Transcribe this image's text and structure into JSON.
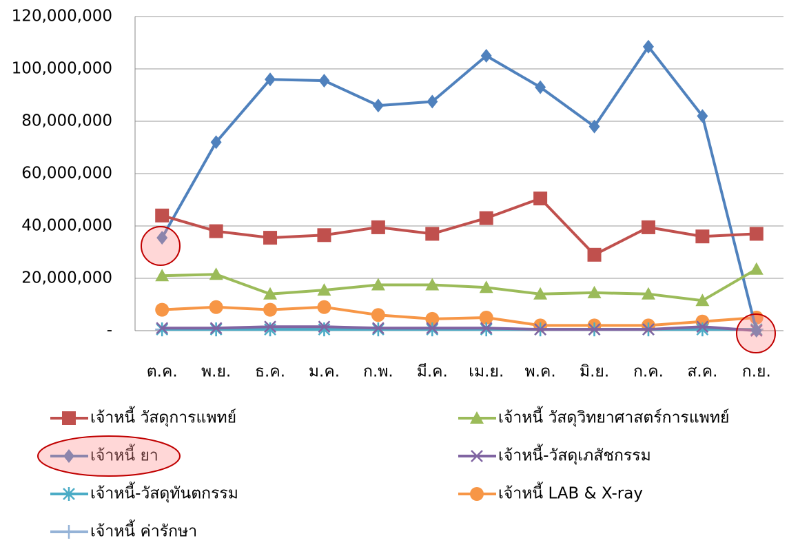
{
  "chart_data": {
    "type": "line",
    "categories": [
      "ต.ค.",
      "พ.ย.",
      "ธ.ค.",
      "ม.ค.",
      "ก.พ.",
      "มี.ค.",
      "เม.ย.",
      "พ.ค.",
      "มิ.ย.",
      "ก.ค.",
      "ส.ค.",
      "ก.ย."
    ],
    "ylim": [
      0,
      120000000
    ],
    "yticks": [
      {
        "value": 0,
        "label": "-"
      },
      {
        "value": 20000000,
        "label": "20,000,000"
      },
      {
        "value": 40000000,
        "label": "40,000,000"
      },
      {
        "value": 60000000,
        "label": "60,000,000"
      },
      {
        "value": 80000000,
        "label": "80,000,000"
      },
      {
        "value": 100000000,
        "label": "100,000,000"
      },
      {
        "value": 120000000,
        "label": "120,000,000"
      }
    ],
    "grid": true,
    "series": [
      {
        "name": "เจ้าหนี้ วัสดุการแพทย์",
        "color": "#c0504d",
        "marker": "square",
        "values": [
          44000000,
          38000000,
          35500000,
          36500000,
          39500000,
          37000000,
          43000000,
          50500000,
          29000000,
          39500000,
          36000000,
          37000000
        ]
      },
      {
        "name": "เจ้าหนี้ วัสดุวิทยาศาสตร์การแพทย์",
        "color": "#9bbb59",
        "marker": "triangle",
        "values": [
          21000000,
          21500000,
          14000000,
          15500000,
          17500000,
          17500000,
          16500000,
          14000000,
          14500000,
          14000000,
          11500000,
          23500000
        ]
      },
      {
        "name": "เจ้าหนี้ ยา",
        "color": "#4f81bd",
        "marker": "diamond",
        "values": [
          35500000,
          72000000,
          96000000,
          95500000,
          86000000,
          87500000,
          105000000,
          93000000,
          78000000,
          108500000,
          82000000,
          0
        ]
      },
      {
        "name": "เจ้าหนี้-วัสดุเภสัชกรรม",
        "color": "#8064a2",
        "marker": "x",
        "values": [
          1000000,
          1000000,
          1500000,
          1500000,
          1000000,
          1000000,
          1000000,
          500000,
          500000,
          500000,
          1500000,
          0
        ]
      },
      {
        "name": "เจ้าหนี้-วัสดุทันตกรรม",
        "color": "#4bacc6",
        "marker": "star",
        "values": [
          500000,
          500000,
          500000,
          500000,
          500000,
          500000,
          500000,
          500000,
          500000,
          500000,
          500000,
          500000
        ]
      },
      {
        "name": "เจ้าหนี้ LAB & X-ray",
        "color": "#f79646",
        "marker": "circle",
        "values": [
          8000000,
          9000000,
          8000000,
          9000000,
          6000000,
          4500000,
          5000000,
          2000000,
          2000000,
          2000000,
          3500000,
          5000000
        ]
      },
      {
        "name": "เจ้าหนี้ ค่ารักษา",
        "color": "#95b3d7",
        "marker": "plus",
        "values": [
          500000,
          500000,
          500000,
          500000,
          500000,
          500000,
          500000,
          500000,
          500000,
          500000,
          500000,
          500000
        ]
      }
    ]
  }
}
